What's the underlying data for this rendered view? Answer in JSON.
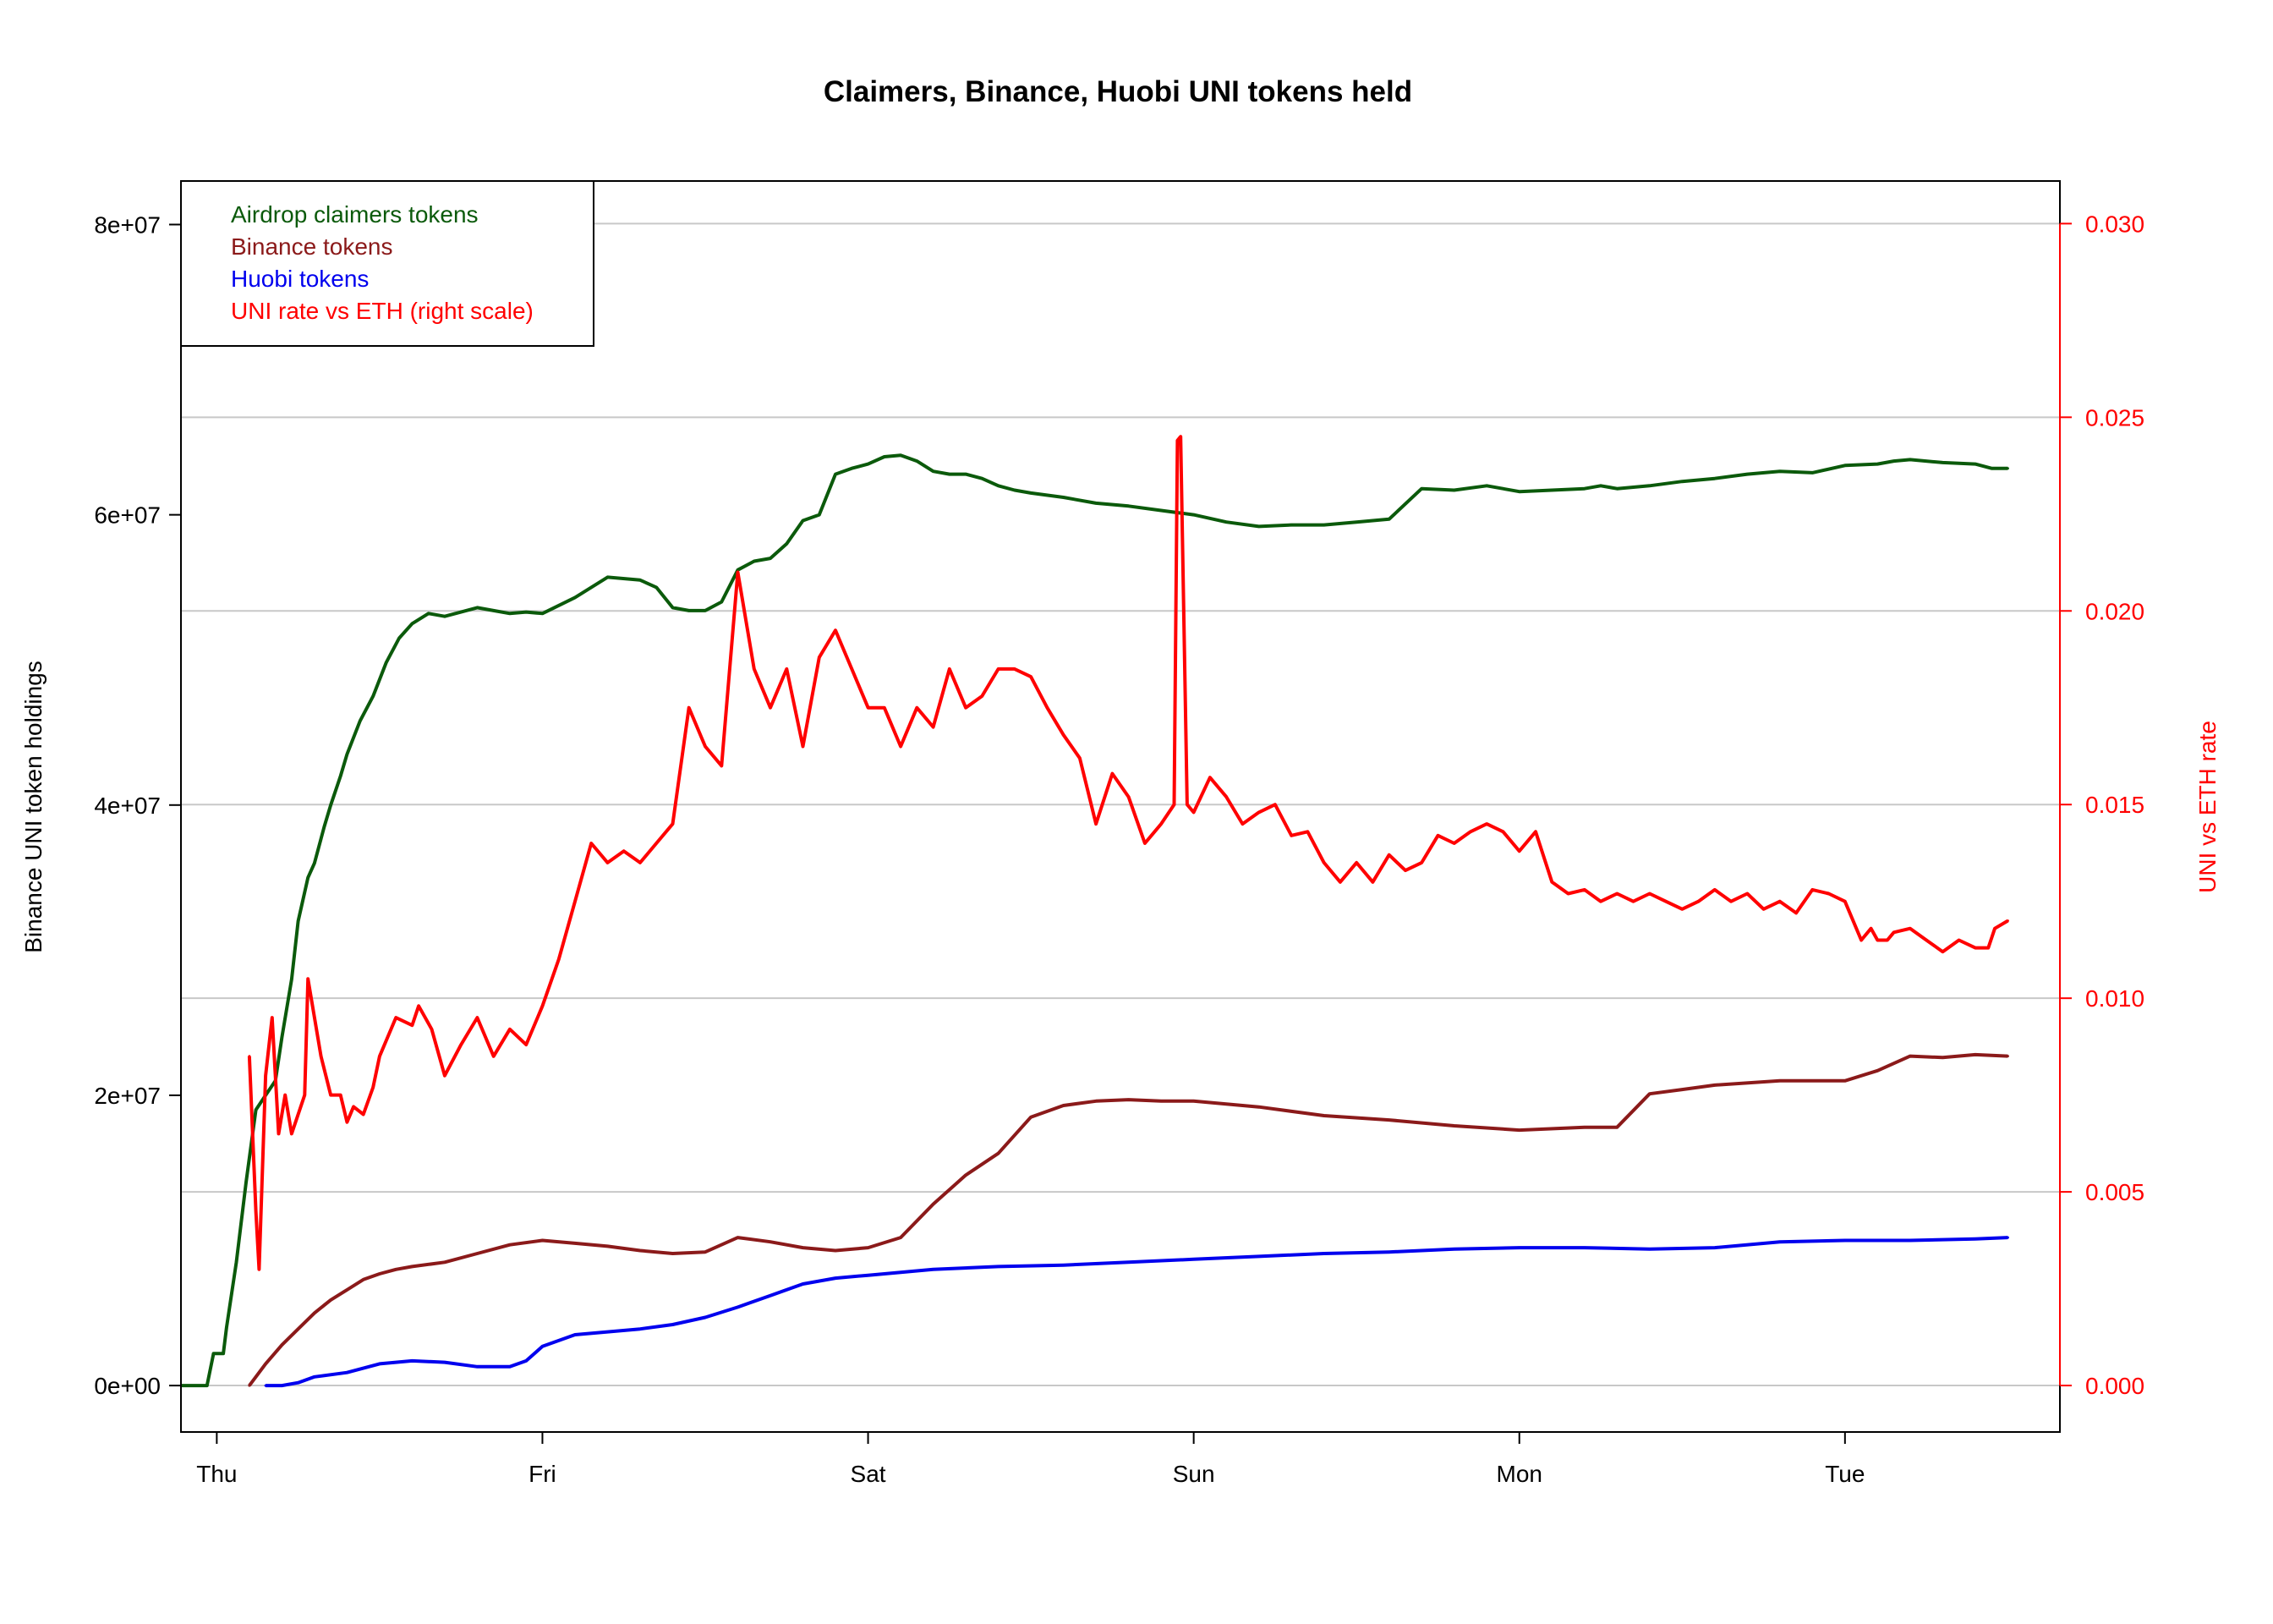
{
  "chart_data": {
    "type": "line",
    "title": "Claimers, Binance, Huobi UNI tokens held",
    "ylabel": "Binance UNI token holdings",
    "ylabel_right": "UNI vs ETH rate",
    "ylim": [
      -3200000,
      83000000
    ],
    "ylim_right": [
      -0.0012,
      0.0311
    ],
    "xlim": [
      -0.11,
      5.66
    ],
    "x_ticks": [
      {
        "x": 0,
        "label": "Thu"
      },
      {
        "x": 1,
        "label": "Fri"
      },
      {
        "x": 2,
        "label": "Sat"
      },
      {
        "x": 3,
        "label": "Sun"
      },
      {
        "x": 4,
        "label": "Mon"
      },
      {
        "x": 5,
        "label": "Tue"
      }
    ],
    "y_ticks_left": [
      {
        "v": 0,
        "label": "0e+00"
      },
      {
        "v": 20000000,
        "label": "2e+07"
      },
      {
        "v": 40000000,
        "label": "4e+07"
      },
      {
        "v": 60000000,
        "label": "6e+07"
      },
      {
        "v": 80000000,
        "label": "8e+07"
      }
    ],
    "y_ticks_right": [
      {
        "v": 0.0,
        "label": "0.000"
      },
      {
        "v": 0.005,
        "label": "0.005"
      },
      {
        "v": 0.01,
        "label": "0.010"
      },
      {
        "v": 0.015,
        "label": "0.015"
      },
      {
        "v": 0.02,
        "label": "0.020"
      },
      {
        "v": 0.025,
        "label": "0.025"
      },
      {
        "v": 0.03,
        "label": "0.030"
      }
    ],
    "grid": "horizontal at right-axis ticks",
    "legend_position": "top-left",
    "colors": {
      "claimers": "#0b5a0b",
      "binance": "#8b1a1a",
      "huobi": "#0000ee",
      "rate": "#ff0000"
    },
    "series": [
      {
        "name": "Airdrop claimers tokens",
        "axis": "left",
        "color": "#0b5a0b",
        "x": [
          -0.11,
          -0.03,
          -0.01,
          0.02,
          0.03,
          0.06,
          0.09,
          0.12,
          0.15,
          0.18,
          0.2,
          0.23,
          0.25,
          0.28,
          0.3,
          0.33,
          0.35,
          0.38,
          0.4,
          0.44,
          0.48,
          0.52,
          0.56,
          0.6,
          0.65,
          0.7,
          0.75,
          0.8,
          0.85,
          0.9,
          0.95,
          1.0,
          1.1,
          1.2,
          1.3,
          1.35,
          1.4,
          1.45,
          1.5,
          1.55,
          1.6,
          1.65,
          1.7,
          1.75,
          1.8,
          1.85,
          1.9,
          1.95,
          2.0,
          2.05,
          2.1,
          2.15,
          2.2,
          2.25,
          2.3,
          2.35,
          2.4,
          2.45,
          2.5,
          2.6,
          2.7,
          2.8,
          2.9,
          3.0,
          3.1,
          3.2,
          3.3,
          3.4,
          3.5,
          3.6,
          3.7,
          3.8,
          3.9,
          4.0,
          4.1,
          4.2,
          4.25,
          4.3,
          4.4,
          4.5,
          4.6,
          4.7,
          4.8,
          4.9,
          5.0,
          5.1,
          5.15,
          5.2,
          5.3,
          5.4,
          5.45,
          5.5
        ],
        "y": [
          0,
          0,
          2200000,
          2200000,
          4000000,
          8500000,
          14000000,
          19000000,
          20000000,
          21000000,
          24000000,
          28000000,
          32000000,
          35000000,
          36000000,
          38500000,
          40000000,
          42000000,
          43500000,
          45800000,
          47500000,
          49800000,
          51500000,
          52500000,
          53200000,
          53000000,
          53300000,
          53600000,
          53400000,
          53200000,
          53300000,
          53200000,
          54300000,
          55700000,
          55500000,
          55000000,
          53600000,
          53400000,
          53400000,
          54000000,
          56200000,
          56800000,
          57000000,
          58000000,
          59600000,
          60000000,
          62800000,
          63200000,
          63500000,
          64000000,
          64100000,
          63700000,
          63000000,
          62800000,
          62800000,
          62500000,
          62000000,
          61700000,
          61500000,
          61200000,
          60800000,
          60600000,
          60300000,
          60000000,
          59500000,
          59200000,
          59300000,
          59300000,
          59500000,
          59700000,
          61800000,
          61700000,
          62000000,
          61600000,
          61700000,
          61800000,
          62000000,
          61800000,
          62000000,
          62300000,
          62500000,
          62800000,
          63000000,
          62900000,
          63400000,
          63500000,
          63700000,
          63800000,
          63600000,
          63500000,
          63200000,
          63200000
        ]
      },
      {
        "name": "Binance tokens",
        "axis": "left",
        "color": "#8b1a1a",
        "x": [
          0.1,
          0.15,
          0.2,
          0.25,
          0.3,
          0.35,
          0.4,
          0.45,
          0.5,
          0.55,
          0.6,
          0.7,
          0.8,
          0.9,
          1.0,
          1.1,
          1.2,
          1.3,
          1.4,
          1.5,
          1.6,
          1.7,
          1.8,
          1.9,
          2.0,
          2.1,
          2.2,
          2.3,
          2.4,
          2.5,
          2.6,
          2.7,
          2.8,
          2.9,
          3.0,
          3.2,
          3.4,
          3.6,
          3.8,
          4.0,
          4.2,
          4.3,
          4.4,
          4.5,
          4.6,
          4.8,
          5.0,
          5.1,
          5.2,
          5.3,
          5.4,
          5.5
        ],
        "y": [
          0,
          1500000,
          2800000,
          3900000,
          5000000,
          5900000,
          6600000,
          7300000,
          7700000,
          8000000,
          8200000,
          8500000,
          9100000,
          9700000,
          10000000,
          9800000,
          9600000,
          9300000,
          9100000,
          9200000,
          10200000,
          9900000,
          9500000,
          9300000,
          9500000,
          10200000,
          12500000,
          14500000,
          16000000,
          18500000,
          19300000,
          19600000,
          19700000,
          19600000,
          19600000,
          19200000,
          18600000,
          18300000,
          17900000,
          17600000,
          17800000,
          17800000,
          20100000,
          20400000,
          20700000,
          21000000,
          21000000,
          21700000,
          22700000,
          22600000,
          22800000,
          22700000
        ]
      },
      {
        "name": "Huobi tokens",
        "axis": "left",
        "color": "#0000ee",
        "x": [
          0.15,
          0.2,
          0.25,
          0.3,
          0.4,
          0.5,
          0.6,
          0.7,
          0.8,
          0.9,
          0.95,
          1.0,
          1.1,
          1.2,
          1.3,
          1.4,
          1.5,
          1.6,
          1.7,
          1.8,
          1.9,
          2.0,
          2.1,
          2.2,
          2.4,
          2.6,
          2.8,
          3.0,
          3.2,
          3.4,
          3.6,
          3.8,
          4.0,
          4.2,
          4.4,
          4.6,
          4.8,
          5.0,
          5.2,
          5.4,
          5.5
        ],
        "y": [
          0,
          0,
          200000,
          600000,
          900000,
          1500000,
          1700000,
          1600000,
          1300000,
          1300000,
          1700000,
          2700000,
          3500000,
          3700000,
          3900000,
          4200000,
          4700000,
          5400000,
          6200000,
          7000000,
          7400000,
          7600000,
          7800000,
          8000000,
          8200000,
          8300000,
          8500000,
          8700000,
          8900000,
          9100000,
          9200000,
          9400000,
          9500000,
          9500000,
          9400000,
          9500000,
          9900000,
          10000000,
          10000000,
          10100000,
          10200000
        ]
      },
      {
        "name": "UNI rate vs ETH (right scale)",
        "axis": "right",
        "color": "#ff0000",
        "x": [
          0.1,
          0.12,
          0.13,
          0.15,
          0.17,
          0.19,
          0.21,
          0.23,
          0.25,
          0.27,
          0.28,
          0.3,
          0.32,
          0.35,
          0.38,
          0.4,
          0.42,
          0.45,
          0.48,
          0.5,
          0.55,
          0.6,
          0.62,
          0.66,
          0.7,
          0.75,
          0.8,
          0.85,
          0.9,
          0.95,
          1.0,
          1.05,
          1.1,
          1.15,
          1.2,
          1.25,
          1.3,
          1.35,
          1.4,
          1.45,
          1.5,
          1.55,
          1.6,
          1.65,
          1.7,
          1.75,
          1.8,
          1.85,
          1.9,
          1.95,
          2.0,
          2.05,
          2.1,
          2.15,
          2.2,
          2.25,
          2.3,
          2.35,
          2.4,
          2.45,
          2.5,
          2.55,
          2.6,
          2.65,
          2.7,
          2.75,
          2.8,
          2.85,
          2.88,
          2.9,
          2.94,
          2.95,
          2.96,
          2.98,
          3.0,
          3.05,
          3.1,
          3.15,
          3.2,
          3.25,
          3.3,
          3.35,
          3.4,
          3.45,
          3.5,
          3.55,
          3.6,
          3.65,
          3.7,
          3.75,
          3.8,
          3.85,
          3.9,
          3.95,
          4.0,
          4.05,
          4.1,
          4.15,
          4.2,
          4.25,
          4.3,
          4.35,
          4.4,
          4.45,
          4.5,
          4.55,
          4.6,
          4.65,
          4.7,
          4.75,
          4.8,
          4.85,
          4.9,
          4.95,
          5.0,
          5.05,
          5.08,
          5.1,
          5.13,
          5.15,
          5.2,
          5.25,
          5.3,
          5.35,
          5.4,
          5.44,
          5.46,
          5.5
        ],
        "y": [
          0.0085,
          0.0045,
          0.003,
          0.008,
          0.0095,
          0.0065,
          0.0075,
          0.0065,
          0.007,
          0.0075,
          0.0105,
          0.0095,
          0.0085,
          0.0075,
          0.0075,
          0.0068,
          0.0072,
          0.007,
          0.0077,
          0.0085,
          0.0095,
          0.0093,
          0.0098,
          0.0092,
          0.008,
          0.0088,
          0.0095,
          0.0085,
          0.0092,
          0.0088,
          0.0098,
          0.011,
          0.0125,
          0.014,
          0.0135,
          0.0138,
          0.0135,
          0.014,
          0.0145,
          0.0175,
          0.0165,
          0.016,
          0.021,
          0.0185,
          0.0175,
          0.0185,
          0.0165,
          0.0188,
          0.0195,
          0.0185,
          0.0175,
          0.0175,
          0.0165,
          0.0175,
          0.017,
          0.0185,
          0.0175,
          0.0178,
          0.0185,
          0.0185,
          0.0183,
          0.0175,
          0.0168,
          0.0162,
          0.0145,
          0.0158,
          0.0152,
          0.014,
          0.0143,
          0.0145,
          0.015,
          0.0244,
          0.0245,
          0.015,
          0.0148,
          0.0157,
          0.0152,
          0.0145,
          0.0148,
          0.015,
          0.0142,
          0.0143,
          0.0135,
          0.013,
          0.0135,
          0.013,
          0.0137,
          0.0133,
          0.0135,
          0.0142,
          0.014,
          0.0143,
          0.0145,
          0.0143,
          0.0138,
          0.0143,
          0.013,
          0.0127,
          0.0128,
          0.0125,
          0.0127,
          0.0125,
          0.0127,
          0.0125,
          0.0123,
          0.0125,
          0.0128,
          0.0125,
          0.0127,
          0.0123,
          0.0125,
          0.0122,
          0.0128,
          0.0127,
          0.0125,
          0.0115,
          0.0118,
          0.0115,
          0.0115,
          0.0117,
          0.0118,
          0.0115,
          0.0112,
          0.0115,
          0.0113,
          0.0113,
          0.0118,
          0.012
        ]
      }
    ]
  }
}
